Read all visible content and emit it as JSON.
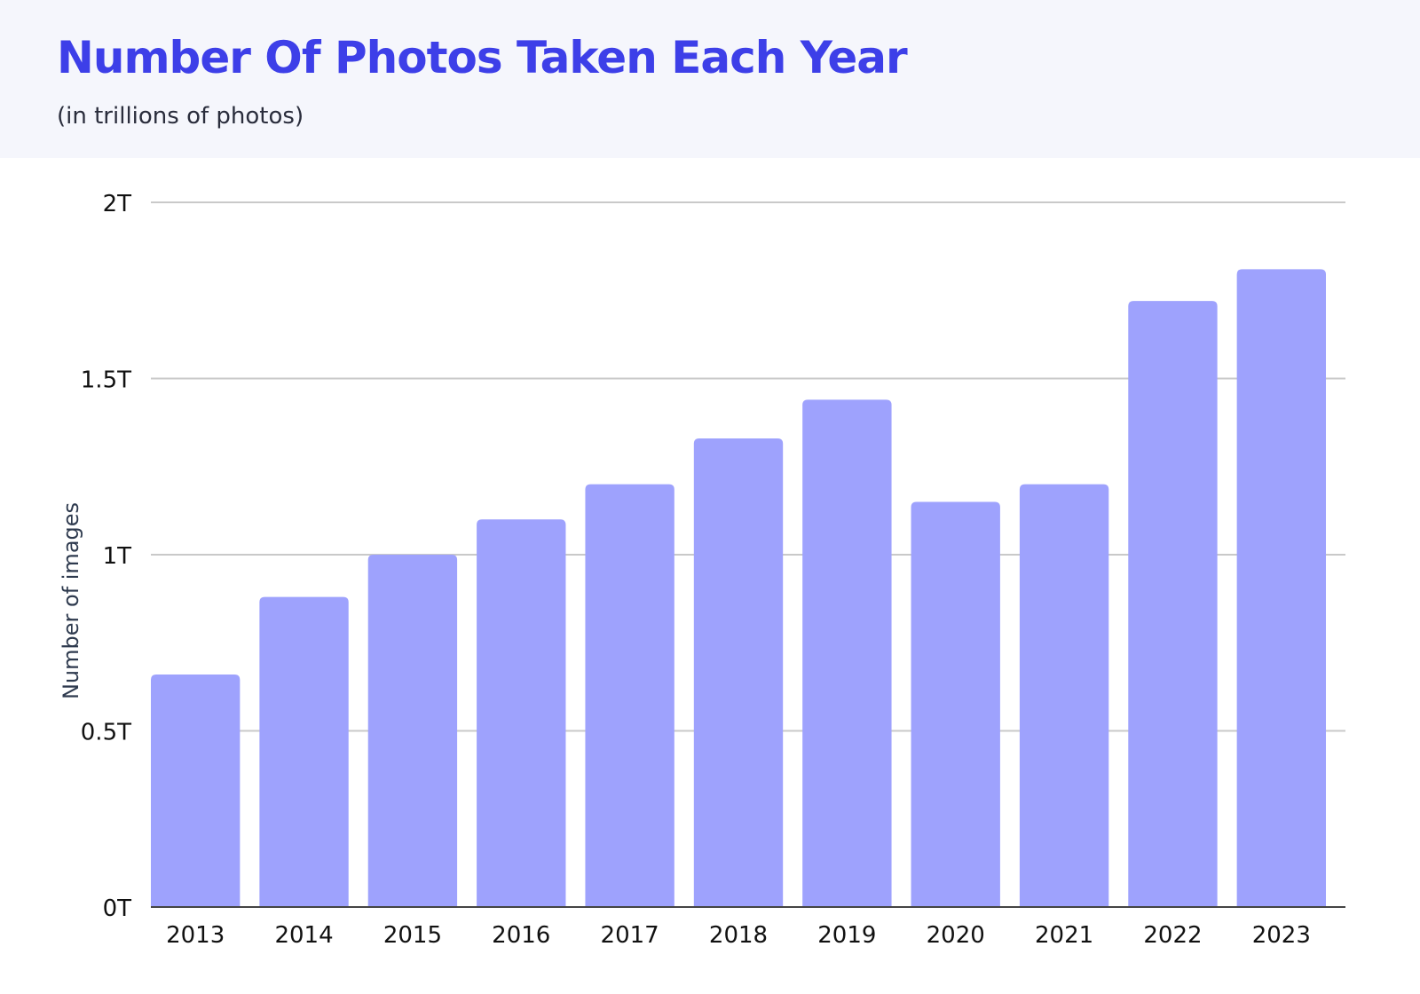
{
  "header": {
    "title": "Number Of Photos Taken Each Year",
    "subtitle": "(in trillions of photos)"
  },
  "colors": {
    "title": "#3d3fe8",
    "bar": "#9ea2fd",
    "grid": "#c9c9c9",
    "axis": "#444444",
    "header_bg": "#f5f6fc"
  },
  "chart_data": {
    "type": "bar",
    "title": "Number Of Photos Taken Each Year",
    "subtitle": "(in trillions of photos)",
    "xlabel": "",
    "ylabel": "Number of images",
    "categories": [
      "2013",
      "2014",
      "2015",
      "2016",
      "2017",
      "2018",
      "2019",
      "2020",
      "2021",
      "2022",
      "2023"
    ],
    "values": [
      0.66,
      0.88,
      1.0,
      1.1,
      1.2,
      1.33,
      1.44,
      1.15,
      1.2,
      1.72,
      1.81
    ],
    "unit": "trillions",
    "ylim": [
      0,
      2
    ],
    "yticks": [
      0,
      0.5,
      1,
      1.5,
      2
    ],
    "ytick_labels": [
      "0T",
      "0.5T",
      "1T",
      "1.5T",
      "2T"
    ],
    "grid": true,
    "legend": "none"
  }
}
